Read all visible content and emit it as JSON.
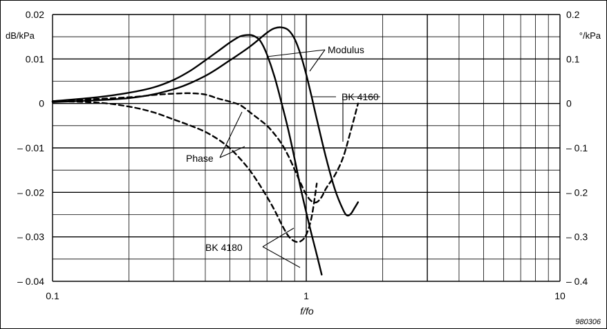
{
  "chart_data": {
    "type": "line",
    "xlabel": "f/fo",
    "x_scale": "log",
    "xlim": [
      0.1,
      10
    ],
    "x_ticks": [
      "0.1",
      "1",
      "10"
    ],
    "ylim_left": [
      -0.04,
      0.02
    ],
    "ylim_right": [
      -0.4,
      0.2
    ],
    "left_unit": "dB/kPa",
    "right_unit": "°/kPa",
    "y_ticks_left": [
      "0.02",
      "0.01",
      "0",
      "– 0.01",
      "– 0.02",
      "– 0.03",
      "– 0.04"
    ],
    "y_ticks_right": [
      "0.2",
      "0.1",
      "0",
      "– 0.1",
      "– 0.2",
      "– 0.3",
      "– 0.4"
    ],
    "grid": true,
    "code": "980306",
    "annotations": [
      "Modulus",
      "Phase",
      "BK 4160",
      "BK 4180"
    ],
    "series": [
      {
        "axis": "left",
        "style": "solid",
        "x": [
          0.1,
          0.15,
          0.2,
          0.25,
          0.3,
          0.35,
          0.4,
          0.45,
          0.5,
          0.55,
          0.6,
          0.63,
          0.66,
          0.7,
          0.75,
          0.8,
          0.85,
          0.9,
          0.95,
          1.0,
          1.05,
          1.1,
          1.15
        ],
        "y": [
          0.0005,
          0.0014,
          0.0024,
          0.0036,
          0.0053,
          0.0074,
          0.0097,
          0.0118,
          0.0137,
          0.0151,
          0.0154,
          0.015,
          0.014,
          0.011,
          0.006,
          0.0,
          -0.006,
          -0.0125,
          -0.019,
          -0.0245,
          -0.0295,
          -0.034,
          -0.0385
        ]
      },
      {
        "axis": "left",
        "style": "solid",
        "x": [
          0.1,
          0.2,
          0.3,
          0.4,
          0.5,
          0.6,
          0.7,
          0.75,
          0.8,
          0.85,
          0.9,
          0.95,
          1.0,
          1.05,
          1.1,
          1.2,
          1.3,
          1.4,
          1.45,
          1.5,
          1.55,
          1.6
        ],
        "y": [
          0.0003,
          0.0012,
          0.0032,
          0.0062,
          0.0097,
          0.0128,
          0.0159,
          0.0169,
          0.0171,
          0.0165,
          0.0145,
          0.011,
          0.0065,
          0.0015,
          -0.0035,
          -0.0125,
          -0.0195,
          -0.024,
          -0.0252,
          -0.0248,
          -0.0235,
          -0.0222
        ]
      },
      {
        "axis": "right",
        "style": "dashed",
        "x": [
          0.1,
          0.15,
          0.2,
          0.25,
          0.3,
          0.35,
          0.4,
          0.45,
          0.5,
          0.55,
          0.6,
          0.65,
          0.7,
          0.75,
          0.8,
          0.85,
          0.9,
          0.95,
          1.0,
          1.05,
          1.1
        ],
        "y": [
          0.005,
          0.002,
          -0.007,
          -0.02,
          -0.036,
          -0.05,
          -0.064,
          -0.081,
          -0.101,
          -0.125,
          -0.151,
          -0.18,
          -0.21,
          -0.24,
          -0.272,
          -0.298,
          -0.31,
          -0.31,
          -0.295,
          -0.255,
          -0.18
        ]
      },
      {
        "axis": "right",
        "style": "dashed",
        "x": [
          0.1,
          0.2,
          0.25,
          0.3,
          0.35,
          0.4,
          0.45,
          0.5,
          0.55,
          0.6,
          0.65,
          0.7,
          0.75,
          0.8,
          0.85,
          0.9,
          0.95,
          1.0,
          1.05,
          1.1,
          1.15,
          1.2,
          1.3,
          1.4,
          1.5,
          1.6
        ],
        "y": [
          0.005,
          0.014,
          0.019,
          0.022,
          0.023,
          0.02,
          0.011,
          0.004,
          -0.004,
          -0.02,
          -0.035,
          -0.05,
          -0.069,
          -0.091,
          -0.118,
          -0.149,
          -0.179,
          -0.205,
          -0.22,
          -0.222,
          -0.21,
          -0.19,
          -0.16,
          -0.12,
          -0.06,
          0.0
        ]
      }
    ]
  }
}
